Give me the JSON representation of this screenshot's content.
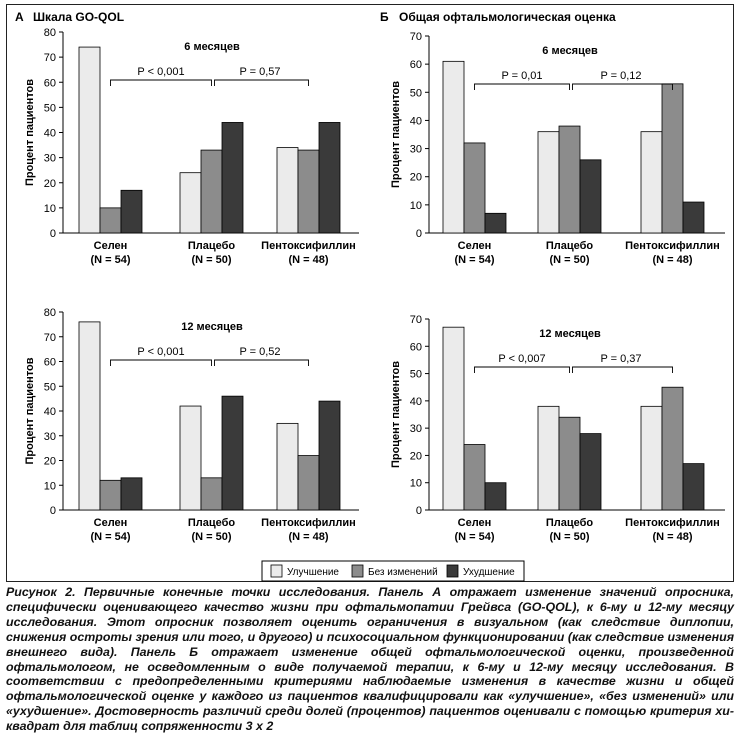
{
  "panels": [
    {
      "letter": "А",
      "title": "Шкала GO-QOL"
    },
    {
      "letter": "Б",
      "title": "Общая офтальмологическая оценка"
    }
  ],
  "legend": [
    {
      "label": "Улучшение",
      "color": "#ebebeb"
    },
    {
      "label": "Без изменений",
      "color": "#8c8c8c"
    },
    {
      "label": "Ухудшение",
      "color": "#3a3a3a"
    }
  ],
  "chart_data": [
    {
      "type": "bar",
      "panel": "А",
      "title": "6 месяцев",
      "ylabel": "Процент пациентов",
      "ylim": [
        0,
        80
      ],
      "yticks": [
        0,
        10,
        20,
        30,
        40,
        50,
        60,
        70,
        80
      ],
      "categories": [
        "Селен",
        "Плацебо",
        "Пентоксифиллин"
      ],
      "category_n": [
        "(N = 54)",
        "(N = 50)",
        "(N = 48)"
      ],
      "series": [
        {
          "name": "Улучшение",
          "values": [
            74,
            24,
            34
          ]
        },
        {
          "name": "Без изменений",
          "values": [
            10,
            33,
            33
          ]
        },
        {
          "name": "Ухудшение",
          "values": [
            17,
            44,
            44
          ]
        }
      ],
      "annotations": [
        "P < 0,001",
        "P = 0,57"
      ]
    },
    {
      "type": "bar",
      "panel": "А",
      "title": "12 месяцев",
      "ylabel": "Процент пациентов",
      "ylim": [
        0,
        80
      ],
      "yticks": [
        0,
        10,
        20,
        30,
        40,
        50,
        60,
        70,
        80
      ],
      "categories": [
        "Селен",
        "Плацебо",
        "Пентоксифиллин"
      ],
      "category_n": [
        "(N = 54)",
        "(N = 50)",
        "(N = 48)"
      ],
      "series": [
        {
          "name": "Улучшение",
          "values": [
            76,
            42,
            35
          ]
        },
        {
          "name": "Без изменений",
          "values": [
            12,
            13,
            22
          ]
        },
        {
          "name": "Ухудшение",
          "values": [
            13,
            46,
            44
          ]
        }
      ],
      "annotations": [
        "P < 0,001",
        "P = 0,52"
      ]
    },
    {
      "type": "bar",
      "panel": "Б",
      "title": "6 месяцев",
      "ylabel": "Процент пациентов",
      "ylim": [
        0,
        70
      ],
      "yticks": [
        0,
        10,
        20,
        30,
        40,
        50,
        60,
        70
      ],
      "categories": [
        "Селен",
        "Плацебо",
        "Пентоксифиллин"
      ],
      "category_n": [
        "(N = 54)",
        "(N = 50)",
        "(N = 48)"
      ],
      "series": [
        {
          "name": "Улучшение",
          "values": [
            61,
            36,
            36
          ]
        },
        {
          "name": "Без изменений",
          "values": [
            32,
            38,
            53
          ]
        },
        {
          "name": "Ухудшение",
          "values": [
            7,
            26,
            11
          ]
        }
      ],
      "annotations": [
        "P = 0,01",
        "P = 0,12"
      ]
    },
    {
      "type": "bar",
      "panel": "Б",
      "title": "12 месяцев",
      "ylabel": "Процент пациентов",
      "ylim": [
        0,
        70
      ],
      "yticks": [
        0,
        10,
        20,
        30,
        40,
        50,
        60,
        70
      ],
      "categories": [
        "Селен",
        "Плацебо",
        "Пентоксифиллин"
      ],
      "category_n": [
        "(N = 54)",
        "(N = 50)",
        "(N = 48)"
      ],
      "series": [
        {
          "name": "Улучшение",
          "values": [
            67,
            38,
            38
          ]
        },
        {
          "name": "Без изменений",
          "values": [
            24,
            34,
            45
          ]
        },
        {
          "name": "Ухудшение",
          "values": [
            10,
            28,
            17
          ]
        }
      ],
      "annotations": [
        "P < 0,007",
        "P = 0,37"
      ]
    }
  ],
  "caption": {
    "lead": "Рисунок 2. Первичные конечные точки исследования.",
    "text": " Панель А отражает изменение значений опросника, специфически оценивающего качество жизни при офтальмопатии Грейвса (GO-QOL), к 6-му и 12-му месяцу исследования. Этот опросник позволяет оценить ограничения в визуальном (как следствие диплопии, снижения остроты зрения или того, и другого) и психосоциальном функционировании (как следствие изменения внешнего вида). Панель Б отражает изменение общей офтальмологической оценки, произведенной офтальмологом, не осведомленным о виде получаемой терапии, к 6-му и 12-му месяцу исследования. В соответствии с предопределенными критериями наблюдаемые изменения в качестве жизни и общей офтальмологической оценке у каждого из пациентов квалифицировали как «улучшение», «без изменений» или «ухудшение». Достоверность различий среди долей (процентов) пациентов оценивали с помощью критерия хи-квадрат для таблиц сопряженности 3 х 2"
  }
}
